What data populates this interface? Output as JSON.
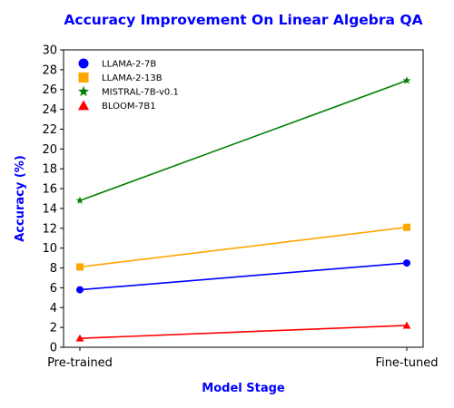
{
  "chart_data": {
    "type": "line",
    "title": "Accuracy Improvement On Linear Algebra QA",
    "xlabel": "Model Stage",
    "ylabel": "Accuracy (%)",
    "categories": [
      "Pre-trained",
      "Fine-tuned"
    ],
    "ylim": [
      0,
      30
    ],
    "yticks": [
      0,
      2,
      4,
      6,
      8,
      10,
      12,
      14,
      16,
      18,
      20,
      22,
      24,
      26,
      28,
      30
    ],
    "grid": false,
    "legend_position": "top-left",
    "title_color": "#0000ff",
    "label_color": "#0000ff",
    "series": [
      {
        "name": "LLAMA-2-7B",
        "values": [
          5.8,
          8.5
        ],
        "color": "#0000ff",
        "marker": "circle"
      },
      {
        "name": "LLAMA-2-13B",
        "values": [
          8.1,
          12.1
        ],
        "color": "#ffa500",
        "marker": "square"
      },
      {
        "name": "MISTRAL-7B-v0.1",
        "values": [
          14.8,
          26.9
        ],
        "color": "#008000",
        "marker": "star"
      },
      {
        "name": "BLOOM-7B1",
        "values": [
          0.9,
          2.2
        ],
        "color": "#ff0000",
        "marker": "triangle"
      }
    ]
  }
}
